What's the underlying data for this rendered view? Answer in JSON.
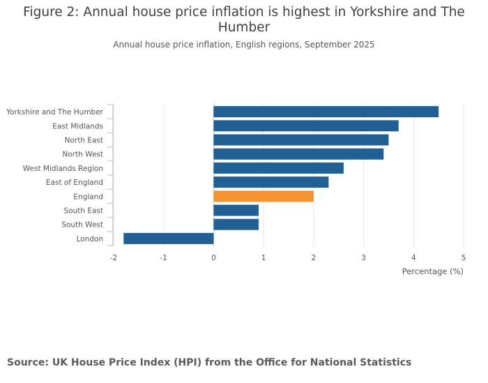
{
  "chart_data": {
    "type": "bar",
    "orientation": "horizontal",
    "title": "Figure 2: Annual house price inflation is highest in Yorkshire and The Humber",
    "subtitle": "Annual house price inflation, English regions, September 2025",
    "categories": [
      "Yorkshire and The Humber",
      "East Midlands",
      "North East",
      "North West",
      "West Midlands Region",
      "East of England",
      "England",
      "South East",
      "South West",
      "London"
    ],
    "values": [
      4.5,
      3.7,
      3.5,
      3.4,
      2.6,
      2.3,
      2.0,
      0.9,
      0.9,
      -1.8
    ],
    "highlight": "England",
    "xlabel": "Percentage (%)",
    "ylabel": "",
    "xlim": [
      -2,
      5
    ],
    "xticks": [
      -2,
      -1,
      0,
      1,
      2,
      3,
      4,
      5
    ],
    "grid": true,
    "colors": {
      "bar": "#206095",
      "highlight": "#f39431",
      "grid": "#e6e6e6",
      "axis": "#bbbbbb"
    }
  },
  "source": "Source: UK House Price Index (HPI) from the Office for National Statistics"
}
